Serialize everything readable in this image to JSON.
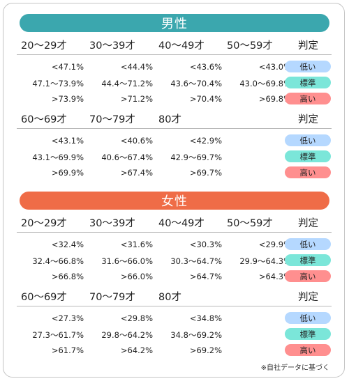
{
  "colors": {
    "male_banner": "#3ba7ae",
    "female_banner": "#ef6c47",
    "low": "#b5d8ff",
    "standard": "#7be6d9",
    "high": "#ff8f8f"
  },
  "judgment_header": "判定",
  "badges": {
    "low": "低い",
    "standard": "標準",
    "high": "高い"
  },
  "male": {
    "title": "男性",
    "groups": [
      {
        "ages": [
          "20〜29才",
          "30〜39才",
          "40〜49才",
          "50〜59才"
        ],
        "rows": [
          [
            "<47.1%",
            "<44.4%",
            "<43.6%",
            "<43.0%"
          ],
          [
            "47.1〜73.9%",
            "44.4〜71.2%",
            "43.6〜70.4%",
            "43.0〜69.8%"
          ],
          [
            ">73.9%",
            ">71.2%",
            ">70.4%",
            ">69.8%"
          ]
        ]
      },
      {
        "ages": [
          "60〜69才",
          "70〜79才",
          "80才",
          ""
        ],
        "rows": [
          [
            "<43.1%",
            "<40.6%",
            "<42.9%",
            ""
          ],
          [
            "43.1〜69.9%",
            "40.6〜67.4%",
            "42.9〜69.7%",
            ""
          ],
          [
            ">69.9%",
            ">67.4%",
            ">69.7%",
            ""
          ]
        ]
      }
    ]
  },
  "female": {
    "title": "女性",
    "groups": [
      {
        "ages": [
          "20〜29才",
          "30〜39才",
          "40〜49才",
          "50〜59才"
        ],
        "rows": [
          [
            "<32.4%",
            "<31.6%",
            "<30.3%",
            "<29.9%"
          ],
          [
            "32.4〜66.8%",
            "31.6〜66.0%",
            "30.3〜64.7%",
            "29.9〜64.3%"
          ],
          [
            ">66.8%",
            ">66.0%",
            ">64.7%",
            ">64.3%"
          ]
        ]
      },
      {
        "ages": [
          "60〜69才",
          "70〜79才",
          "80才",
          ""
        ],
        "rows": [
          [
            "<27.3%",
            "<29.8%",
            "<34.8%",
            ""
          ],
          [
            "27.3〜61.7%",
            "29.8〜64.2%",
            "34.8〜69.2%",
            ""
          ],
          [
            ">61.7%",
            ">64.2%",
            ">69.2%",
            ""
          ]
        ]
      }
    ]
  },
  "footnote": "※自社データに基づく"
}
